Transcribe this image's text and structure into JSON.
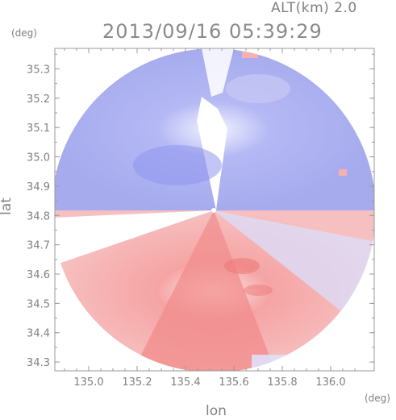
{
  "header": {
    "altitude": "ALT(km) 2.0",
    "timestamp": "2013/09/16 05:39:29"
  },
  "chart_data": {
    "type": "heatmap",
    "title": "2013/09/16 05:39:29",
    "xlabel": "lon",
    "ylabel": "lat",
    "x_unit": "(deg)",
    "y_unit": "(deg)",
    "xlim": [
      134.86,
      136.18
    ],
    "ylim": [
      34.27,
      35.37
    ],
    "x_ticks": [
      "135.0",
      "135.2",
      "135.4",
      "135.6",
      "135.8",
      "136.0"
    ],
    "y_ticks": [
      "34.3",
      "34.4",
      "34.5",
      "34.6",
      "34.7",
      "34.8",
      "34.9",
      "35.0",
      "35.1",
      "35.2",
      "35.3"
    ],
    "radar_center": {
      "lon": 135.52,
      "lat": 34.82
    },
    "color_negative": "#8e95f0",
    "color_positive": "#f48a8a",
    "grid": false
  }
}
